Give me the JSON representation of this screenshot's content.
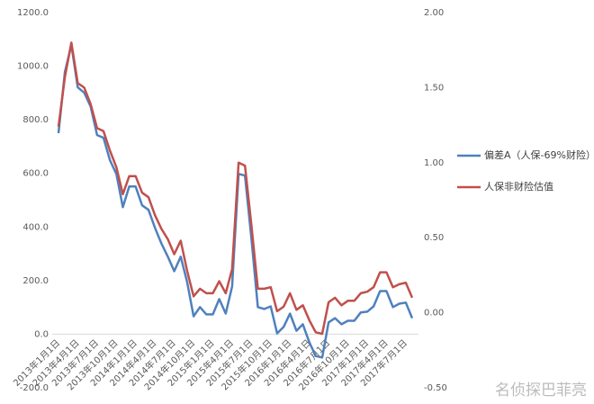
{
  "chart_data": {
    "type": "line",
    "categories": [
      "2013年1月1日",
      null,
      null,
      "2013年4月1日",
      null,
      null,
      "2013年7月1日",
      null,
      null,
      "2013年10月1日",
      null,
      null,
      "2014年1月1日",
      null,
      null,
      "2014年4月1日",
      null,
      null,
      "2014年7月1日",
      null,
      null,
      "2014年10月1日",
      null,
      null,
      "2015年1月1日",
      null,
      null,
      "2015年4月1日",
      null,
      null,
      "2015年7月1日",
      null,
      null,
      "2015年10月1日",
      null,
      null,
      "2016年1月1日",
      null,
      null,
      "2016年4月1日",
      null,
      null,
      "2016年7月1日",
      null,
      null,
      "2016年10月1日",
      null,
      null,
      "2017年1月1日",
      null,
      null,
      "2017年4月1日",
      null,
      null,
      "2017年7月1日",
      null
    ],
    "series": [
      {
        "name": "偏差A（人保-69%财险）",
        "color": "#4f81bd",
        "axis": "y",
        "values": [
          750,
          978,
          1079,
          921,
          901,
          850,
          743,
          733,
          649,
          598,
          474,
          551,
          551,
          481,
          464,
          397,
          339,
          289,
          235,
          289,
          195,
          67,
          101,
          74,
          74,
          131,
          77,
          178,
          598,
          592,
          356,
          101,
          94,
          104,
          3,
          27,
          77,
          13,
          37,
          -30,
          -81,
          -87,
          44,
          60,
          37,
          50,
          50,
          81,
          84,
          104,
          161,
          161,
          101,
          114,
          118,
          60
        ]
      },
      {
        "name": "人保非财险估值",
        "color": "#c0504d",
        "axis": "y2",
        "values": [
          1.24,
          1.57,
          1.8,
          1.53,
          1.5,
          1.39,
          1.23,
          1.21,
          1.08,
          0.97,
          0.79,
          0.91,
          0.91,
          0.8,
          0.77,
          0.65,
          0.56,
          0.49,
          0.39,
          0.48,
          0.28,
          0.11,
          0.16,
          0.13,
          0.13,
          0.21,
          0.13,
          0.29,
          1.0,
          0.98,
          0.58,
          0.16,
          0.16,
          0.17,
          0.01,
          0.04,
          0.13,
          0.02,
          0.05,
          -0.05,
          -0.13,
          -0.14,
          0.07,
          0.1,
          0.05,
          0.08,
          0.08,
          0.13,
          0.14,
          0.17,
          0.27,
          0.27,
          0.17,
          0.19,
          0.2,
          0.1
        ]
      }
    ],
    "ylim": [
      -200,
      1200
    ],
    "yticks": [
      {
        "value": -200,
        "label": "-200.0"
      },
      {
        "value": 0,
        "label": "0.0"
      },
      {
        "value": 200,
        "label": "200.0"
      },
      {
        "value": 400,
        "label": "400.0"
      },
      {
        "value": 600,
        "label": "600.0"
      },
      {
        "value": 800,
        "label": "800.0"
      },
      {
        "value": 1000,
        "label": "1000.0"
      },
      {
        "value": 1200,
        "label": "1200.0"
      }
    ],
    "y2lim": [
      -0.5,
      2.0
    ],
    "y2ticks": [
      {
        "value": -0.5,
        "label": "-0.50"
      },
      {
        "value": 0,
        "label": "0.00"
      },
      {
        "value": 0.5,
        "label": "0.50"
      },
      {
        "value": 1.0,
        "label": "1.00"
      },
      {
        "value": 1.5,
        "label": "1.50"
      },
      {
        "value": 2.0,
        "label": "2.00"
      }
    ],
    "grid": false,
    "legend": "right",
    "watermark": "名侦探巴菲亮"
  }
}
